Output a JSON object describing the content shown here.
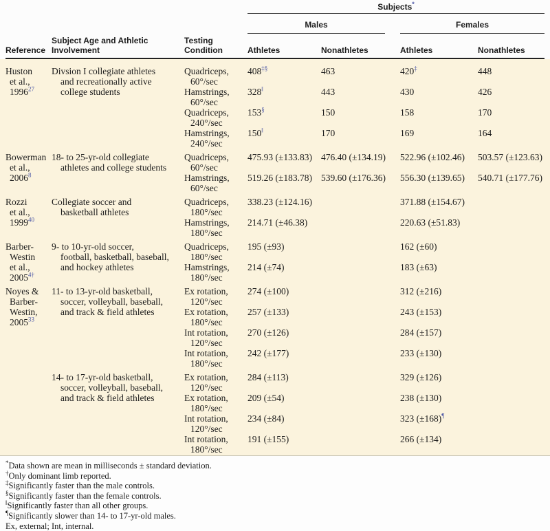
{
  "colors": {
    "table_body_background": "#fbf3dd",
    "superscript_blue": "#4a56a6",
    "rule_dark": "#222222"
  },
  "table": {
    "header": {
      "subjects_label": "Subjects",
      "subjects_sup": "*",
      "group_males": "Males",
      "group_females": "Females",
      "col_reference": "Reference",
      "col_subject_line1": "Subject Age and Athletic",
      "col_subject_line2": "Involvement",
      "col_testing_line1": "Testing",
      "col_testing_line2": "Condition",
      "col_males_athletes": "Athletes",
      "col_males_nonathletes": "Nonathletes",
      "col_females_athletes": "Athletes",
      "col_females_nonathletes": "Nonathletes"
    },
    "blocks": [
      {
        "reference": {
          "lines": [
            "Huston",
            "et al.,",
            "1996"
          ],
          "sup": "27"
        },
        "subject": [
          "Divsion I collegiate athletes",
          "and recreationally active",
          "college students"
        ],
        "rows": [
          {
            "condition": [
              "Quadriceps,",
              "60°/sec"
            ],
            "values": [
              {
                "v": "408",
                "sup": "‡§"
              },
              {
                "v": "463"
              },
              {
                "v": "420",
                "sup": "‡"
              },
              {
                "v": "448"
              }
            ]
          },
          {
            "condition": [
              "Hamstrings,",
              "60°/sec"
            ],
            "values": [
              {
                "v": "328",
                "sup": "‖"
              },
              {
                "v": "443"
              },
              {
                "v": "430"
              },
              {
                "v": "426"
              }
            ]
          },
          {
            "condition": [
              "Quadriceps,",
              "240°/sec"
            ],
            "values": [
              {
                "v": "153",
                "sup": "§"
              },
              {
                "v": "150"
              },
              {
                "v": "158"
              },
              {
                "v": "170"
              }
            ]
          },
          {
            "condition": [
              "Hamstrings,",
              "240°/sec"
            ],
            "values": [
              {
                "v": "150",
                "sup": "‖"
              },
              {
                "v": "170"
              },
              {
                "v": "169"
              },
              {
                "v": "164"
              }
            ]
          }
        ]
      },
      {
        "reference": {
          "lines": [
            "Bowerman",
            "et al.,",
            "2006"
          ],
          "sup": "8"
        },
        "subject": [
          "18- to 25-yr-old collegiate",
          "athletes and college students"
        ],
        "rows": [
          {
            "condition": [
              "Quadriceps,",
              "60°/sec"
            ],
            "values": [
              {
                "v": "475.93 (±133.83)"
              },
              {
                "v": "476.40 (±134.19)"
              },
              {
                "v": "522.96 (±102.46)"
              },
              {
                "v": "503.57 (±123.63)"
              }
            ]
          },
          {
            "condition": [
              "Hamstrings,",
              "60°/sec"
            ],
            "values": [
              {
                "v": "519.26 (±183.78)"
              },
              {
                "v": "539.60 (±176.36)"
              },
              {
                "v": "556.30 (±139.65)"
              },
              {
                "v": "540.71 (±177.76)"
              }
            ]
          }
        ]
      },
      {
        "reference": {
          "lines": [
            "Rozzi",
            "et al.,",
            "1999"
          ],
          "sup": "40"
        },
        "subject": [
          "Collegiate soccer and",
          "basketball athletes"
        ],
        "rows": [
          {
            "condition": [
              "Quadriceps,",
              "180°/sec"
            ],
            "values": [
              {
                "v": "338.23 (±124.16)"
              },
              null,
              {
                "v": "371.88 (±154.67)"
              },
              null
            ]
          },
          {
            "condition": [
              "Hamstrings,",
              "180°/sec"
            ],
            "values": [
              {
                "v": "214.71 (±46.38)"
              },
              null,
              {
                "v": "220.63 (±51.83)"
              },
              null
            ]
          }
        ]
      },
      {
        "reference": {
          "lines": [
            "Barber-",
            "Westin",
            "et al.,",
            "2005"
          ],
          "sup": "4†"
        },
        "subject": [
          "9- to 10-yr-old soccer,",
          "football, basketball, baseball,",
          "and hockey athletes"
        ],
        "rows": [
          {
            "condition": [
              "Quadriceps,",
              "180°/sec"
            ],
            "values": [
              {
                "v": "195 (±93)"
              },
              null,
              {
                "v": "162 (±60)"
              },
              null
            ]
          },
          {
            "condition": [
              "Hamstrings,",
              "180°/sec"
            ],
            "values": [
              {
                "v": "214 (±74)"
              },
              null,
              {
                "v": "183 (±63)"
              },
              null
            ]
          }
        ]
      },
      {
        "reference": {
          "lines": [
            "Noyes &",
            "Barber-",
            "Westin,",
            "2005"
          ],
          "sup": "33"
        },
        "subject": [
          "11- to 13-yr-old basketball,",
          "soccer, volleyball, baseball,",
          "and track & field athletes"
        ],
        "rows": [
          {
            "condition": [
              "Ex rotation,",
              "120°/sec"
            ],
            "values": [
              {
                "v": "274 (±100)"
              },
              null,
              {
                "v": "312 (±216)"
              },
              null
            ]
          },
          {
            "condition": [
              "Ex rotation,",
              "180°/sec"
            ],
            "values": [
              {
                "v": "257 (±133)"
              },
              null,
              {
                "v": "243 (±153)"
              },
              null
            ]
          },
          {
            "condition": [
              "Int rotation,",
              "120°/sec"
            ],
            "values": [
              {
                "v": "270 (±126)"
              },
              null,
              {
                "v": "284 (±157)"
              },
              null
            ]
          },
          {
            "condition": [
              "Int rotation,",
              "180°/sec"
            ],
            "values": [
              {
                "v": "242 (±177)"
              },
              null,
              {
                "v": "233 (±130)"
              },
              null
            ]
          }
        ]
      },
      {
        "reference": null,
        "subject": [
          "14- to 17-yr-old basketball,",
          "soccer, volleyball, baseball,",
          "and track & field athletes"
        ],
        "rows": [
          {
            "condition": [
              "Ex rotation,",
              "120°/sec"
            ],
            "values": [
              {
                "v": "284 (±113)"
              },
              null,
              {
                "v": "329 (±126)"
              },
              null
            ]
          },
          {
            "condition": [
              "Ex rotation,",
              "180°/sec"
            ],
            "values": [
              {
                "v": "209 (±54)"
              },
              null,
              {
                "v": "238 (±130)"
              },
              null
            ]
          },
          {
            "condition": [
              "Int rotation,",
              "120°/sec"
            ],
            "values": [
              {
                "v": "234 (±84)"
              },
              null,
              {
                "v": "323 (±168)",
                "sup": "¶"
              },
              null
            ]
          },
          {
            "condition": [
              "Int rotation,",
              "180°/sec"
            ],
            "values": [
              {
                "v": "191 (±155)"
              },
              null,
              {
                "v": "266 (±134)"
              },
              null
            ]
          }
        ]
      }
    ],
    "footnotes": [
      {
        "marker": "*",
        "text": "Data shown are mean in milliseconds ± standard deviation."
      },
      {
        "marker": "†",
        "text": "Only dominant limb reported."
      },
      {
        "marker": "‡",
        "text": "Significantly faster than the male controls."
      },
      {
        "marker": "§",
        "text": "Significantly faster than the female controls."
      },
      {
        "marker": "‖",
        "text": "Significantly faster than all other groups."
      },
      {
        "marker": "¶",
        "text": "Significantly slower than 14- to 17-yr-old males."
      },
      {
        "marker": "",
        "text": "Ex, external; Int, internal."
      }
    ]
  }
}
